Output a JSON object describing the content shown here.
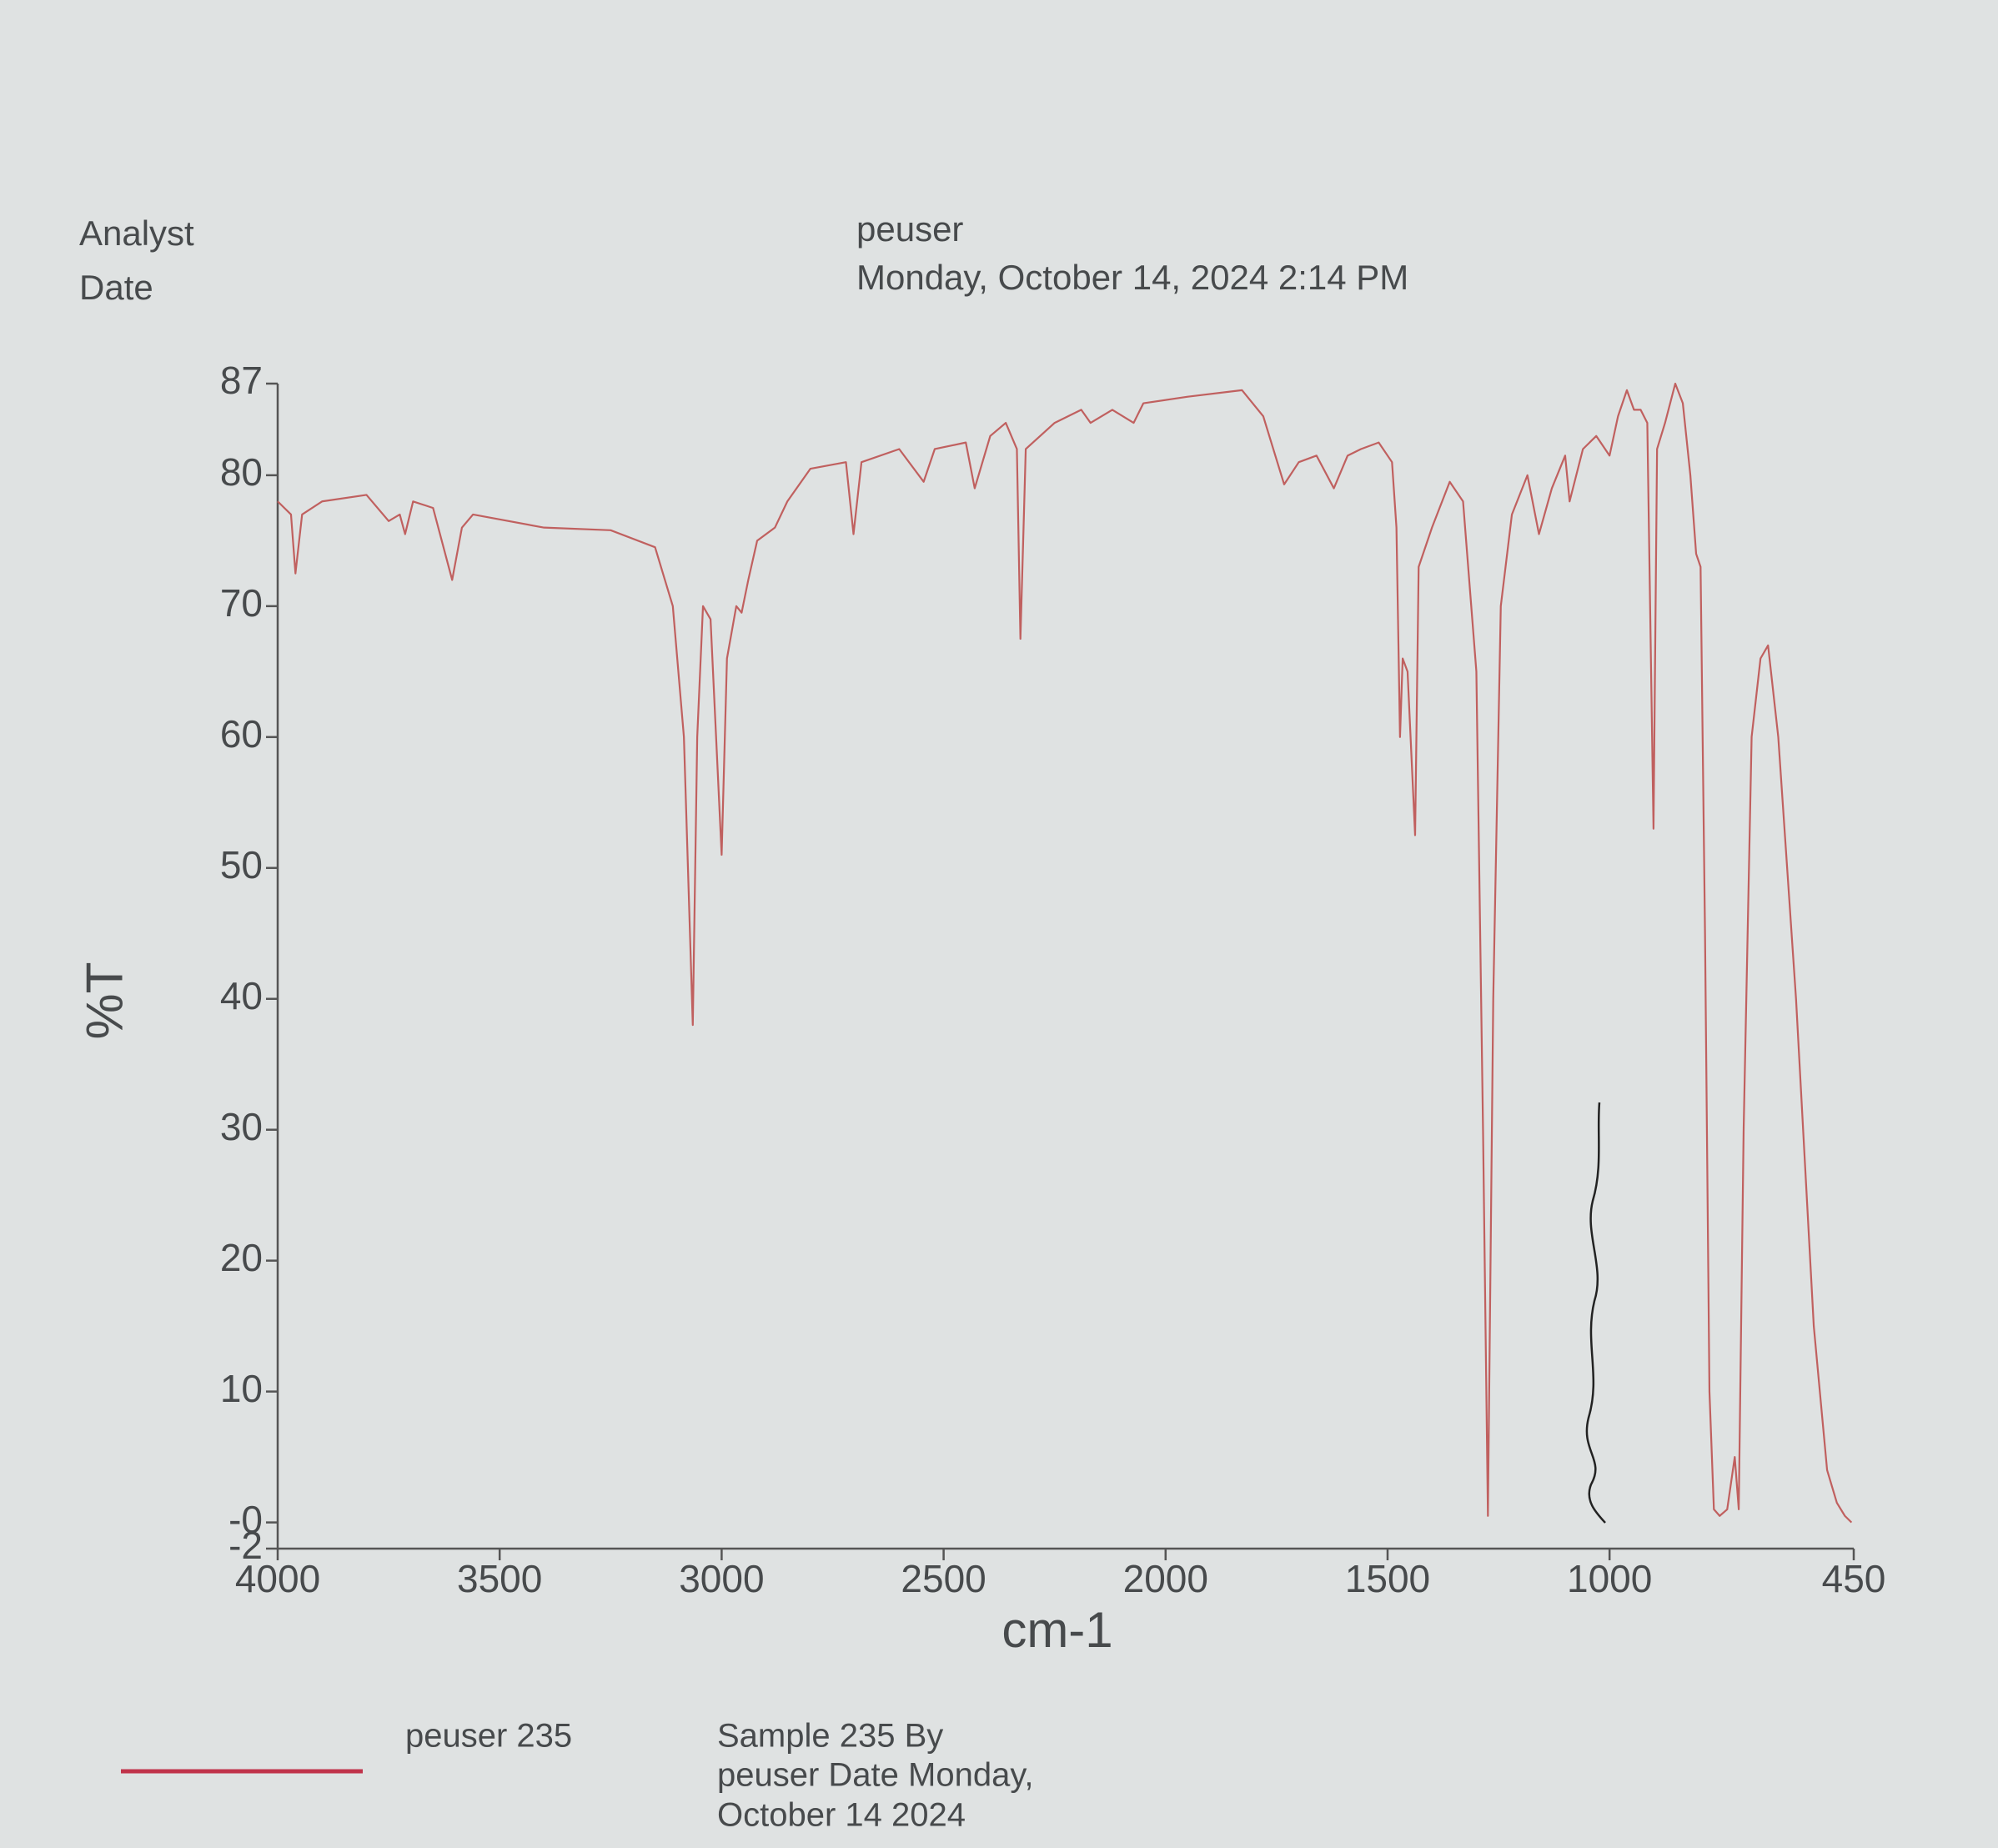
{
  "header": {
    "analyst_label": "Analyst",
    "analyst": "peuser",
    "date_label": "Date",
    "date": "Monday, October 14, 2024 2:14 PM"
  },
  "chart_data": {
    "type": "line",
    "x_label": "cm-1",
    "y_label": "%T",
    "xlim": [
      4000,
      450
    ],
    "xticks": [
      4000,
      3500,
      3000,
      2500,
      2000,
      1500,
      1000,
      450
    ],
    "ylim": [
      -2,
      87
    ],
    "yticks": [
      87,
      80,
      70,
      60,
      50,
      40,
      30,
      20,
      10,
      {
        "value": 0,
        "label": "-0"
      },
      -2
    ],
    "grid": false,
    "x": [
      4000,
      3970,
      3960,
      3945,
      3900,
      3800,
      3750,
      3725,
      3713,
      3695,
      3650,
      3607,
      3585,
      3560,
      3400,
      3250,
      3150,
      3110,
      3085,
      3065,
      3055,
      3042,
      3025,
      3000,
      2988,
      2967,
      2955,
      2940,
      2920,
      2880,
      2852,
      2800,
      2720,
      2703,
      2685,
      2600,
      2545,
      2520,
      2450,
      2430,
      2395,
      2360,
      2335,
      2327,
      2315,
      2250,
      2190,
      2169,
      2120,
      2072,
      2050,
      1950,
      1828,
      1780,
      1733,
      1700,
      1660,
      1621,
      1590,
      1560,
      1520,
      1490,
      1480,
      1472,
      1466,
      1455,
      1438,
      1430,
      1400,
      1360,
      1330,
      1300,
      1285,
      1274,
      1262,
      1245,
      1220,
      1185,
      1159,
      1130,
      1100,
      1090,
      1060,
      1030,
      1000,
      981,
      961,
      945,
      930,
      915,
      901,
      893,
      875,
      852,
      835,
      818,
      805,
      795,
      785,
      775,
      765,
      752,
      735,
      718,
      709,
      698,
      680,
      660,
      643,
      620,
      580,
      540,
      510,
      488,
      470,
      455
    ],
    "series": [
      {
        "name": "peuser 235",
        "color": "#c0605f",
        "values": [
          78,
          77,
          72.5,
          77,
          78,
          78.5,
          76.5,
          77,
          75.5,
          78,
          77.5,
          72,
          76,
          77,
          76,
          75.8,
          74.5,
          70,
          60,
          38,
          60,
          70,
          69,
          51,
          66,
          70,
          69.5,
          72,
          75,
          76,
          78,
          80.5,
          81,
          75.5,
          81,
          82,
          79.5,
          82,
          82.5,
          79,
          83,
          84,
          82,
          67.5,
          82,
          84,
          85,
          84,
          85,
          84,
          85.5,
          86,
          86.5,
          84.5,
          79.3,
          81,
          81.5,
          79,
          81.5,
          82,
          82.5,
          81,
          76,
          60,
          66,
          65,
          52.5,
          73,
          76,
          79.5,
          78,
          65,
          30,
          0.5,
          40,
          70,
          77,
          80,
          75.5,
          79,
          81.5,
          78,
          82,
          83,
          81.5,
          84.5,
          86.5,
          85,
          85,
          84,
          53,
          82,
          84,
          87,
          85.5,
          80,
          74,
          73,
          45,
          10,
          1,
          0.5,
          1,
          5,
          1,
          30,
          60,
          66,
          67,
          60,
          40,
          15,
          4,
          1.5,
          0.5,
          0
        ]
      }
    ],
    "legend_color": "#c0334a",
    "legend_note": [
      "Sample 235 By",
      "peuser Date Monday,",
      "October 14 2024"
    ]
  }
}
